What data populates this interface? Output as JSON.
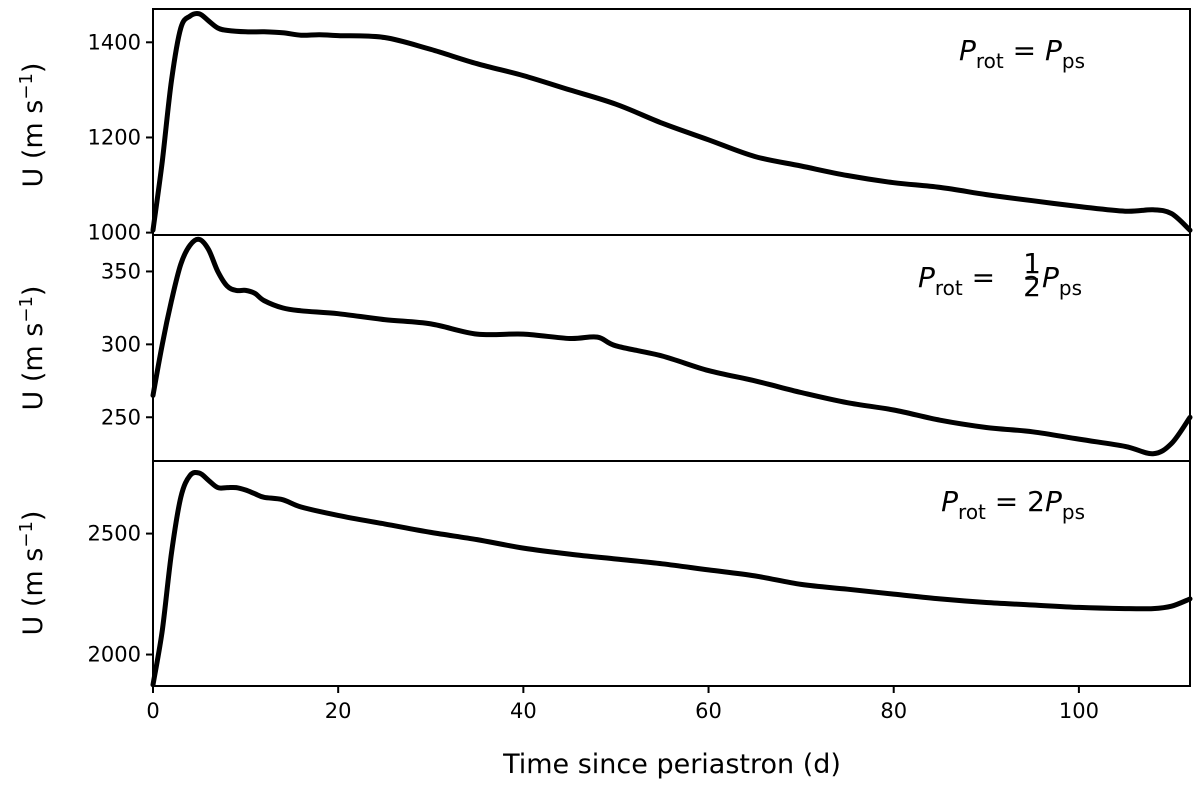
{
  "chart_data": [
    {
      "type": "line",
      "panel": "top",
      "ylabel": "U  (m s⁻¹)",
      "annotation": "P_rot = P_ps",
      "ylim": [
        995,
        1470
      ],
      "yticks": [
        1000,
        1200,
        1400
      ],
      "ytick_labels": [
        "1000",
        "1200",
        "1400"
      ],
      "xlim": [
        0,
        112
      ],
      "grid": false,
      "series": [
        {
          "x": [
            0,
            1,
            2,
            3,
            4,
            5,
            6,
            7,
            8,
            10,
            12,
            14,
            16,
            18,
            20,
            25,
            30,
            35,
            40,
            45,
            50,
            55,
            60,
            65,
            70,
            75,
            80,
            85,
            90,
            95,
            100,
            105,
            108,
            110,
            112
          ],
          "values": [
            1005,
            1150,
            1320,
            1430,
            1455,
            1460,
            1445,
            1430,
            1425,
            1422,
            1422,
            1420,
            1415,
            1416,
            1414,
            1410,
            1385,
            1355,
            1330,
            1300,
            1270,
            1230,
            1195,
            1160,
            1140,
            1120,
            1105,
            1095,
            1080,
            1067,
            1055,
            1045,
            1048,
            1040,
            1005
          ]
        }
      ]
    },
    {
      "type": "line",
      "panel": "middle",
      "ylabel": "U  (m s⁻¹)",
      "annotation": "P_rot = ½ P_ps",
      "ylim": [
        220,
        375
      ],
      "yticks": [
        250,
        300,
        350
      ],
      "ytick_labels": [
        "250",
        "300",
        "350"
      ],
      "xlim": [
        0,
        112
      ],
      "grid": false,
      "series": [
        {
          "x": [
            0,
            1,
            2,
            3,
            4,
            5,
            6,
            7,
            8,
            9,
            10,
            11,
            12,
            14,
            16,
            20,
            25,
            30,
            35,
            40,
            45,
            48,
            50,
            55,
            60,
            65,
            70,
            75,
            80,
            85,
            90,
            95,
            100,
            105,
            108,
            110,
            112
          ],
          "values": [
            265,
            300,
            330,
            355,
            368,
            372,
            365,
            350,
            340,
            337,
            337,
            335,
            330,
            325,
            323,
            321,
            317,
            314,
            307,
            307,
            304,
            305,
            299,
            292,
            282,
            275,
            267,
            260,
            255,
            248,
            243,
            240,
            235,
            230,
            225,
            232,
            250
          ]
        }
      ]
    },
    {
      "type": "line",
      "panel": "bottom",
      "ylabel": "U  (m s⁻¹)",
      "annotation": "P_rot = 2P_ps",
      "ylim": [
        1870,
        2800
      ],
      "yticks": [
        2000,
        2500
      ],
      "ytick_labels": [
        "2000",
        "2500"
      ],
      "xlim": [
        0,
        112
      ],
      "grid": false,
      "xlabel": "Time since periastron  (d)",
      "xticks": [
        0,
        20,
        40,
        60,
        80,
        100
      ],
      "xtick_labels": [
        "0",
        "20",
        "40",
        "60",
        "80",
        "100"
      ],
      "series": [
        {
          "x": [
            0,
            1,
            2,
            3,
            4,
            5,
            6,
            7,
            8,
            9,
            10,
            11,
            12,
            14,
            16,
            20,
            25,
            30,
            35,
            40,
            45,
            50,
            55,
            60,
            65,
            70,
            75,
            80,
            85,
            90,
            95,
            100,
            105,
            108,
            110,
            112
          ],
          "values": [
            1875,
            2100,
            2420,
            2650,
            2740,
            2750,
            2720,
            2690,
            2690,
            2690,
            2680,
            2665,
            2650,
            2640,
            2610,
            2575,
            2540,
            2505,
            2475,
            2440,
            2415,
            2395,
            2375,
            2350,
            2325,
            2290,
            2270,
            2250,
            2230,
            2215,
            2205,
            2195,
            2190,
            2190,
            2200,
            2230
          ]
        }
      ]
    }
  ]
}
